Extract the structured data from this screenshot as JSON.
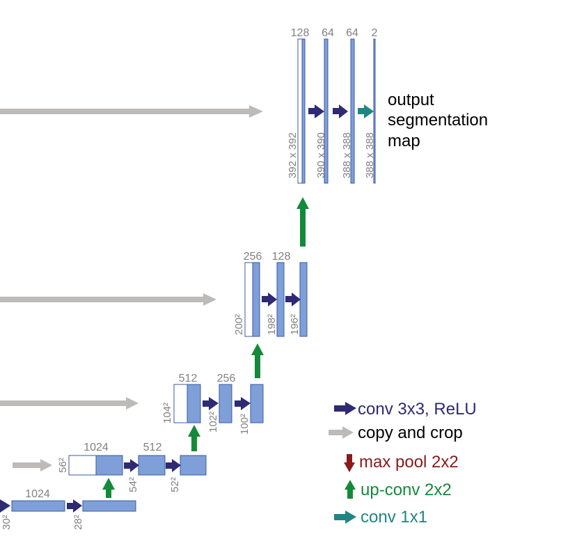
{
  "colors": {
    "feature_fill": "#7f9fd8",
    "feature_stroke": "#3b5aa0",
    "copied_fill": "#ffffff",
    "conv": "#2e2a74",
    "copy": "#bdbaba",
    "maxpool": "#8b1a1a",
    "upconv": "#138a3a",
    "conv1x1": "#1f8585",
    "label": "#808080"
  },
  "output": {
    "channels": [
      "128",
      "64",
      "64",
      "2"
    ],
    "sizes": [
      "392 x 392",
      "390 x 390",
      "388 x 388",
      "388 x 388"
    ],
    "caption": [
      "output",
      "segmentation",
      "map"
    ]
  },
  "level3": {
    "channels": [
      "256",
      "128"
    ],
    "sizes": [
      "200²",
      "198²",
      "196²"
    ]
  },
  "level2": {
    "channels": [
      "512",
      "256"
    ],
    "sizes": [
      "104²",
      "102²",
      "100²"
    ]
  },
  "level1": {
    "channels": [
      "1024",
      "512"
    ],
    "sizes": [
      "56²",
      "54²",
      "52²"
    ]
  },
  "bottom": {
    "channels": [
      "1024"
    ],
    "sizes": [
      "30²",
      "28²"
    ]
  },
  "legend": [
    {
      "icon": "conv-arrow-icon",
      "label": "conv 3x3, ReLU",
      "color": "#2e2a74"
    },
    {
      "icon": "copy-arrow-icon",
      "label": "copy and crop",
      "color": "#000000"
    },
    {
      "icon": "max-pool-arrow-icon",
      "label": "max pool 2x2",
      "color": "#8b1a1a"
    },
    {
      "icon": "up-conv-arrow-icon",
      "label": "up-conv 2x2",
      "color": "#138a3a"
    },
    {
      "icon": "conv1x1-arrow-icon",
      "label": "conv 1x1",
      "color": "#1f8585"
    }
  ]
}
